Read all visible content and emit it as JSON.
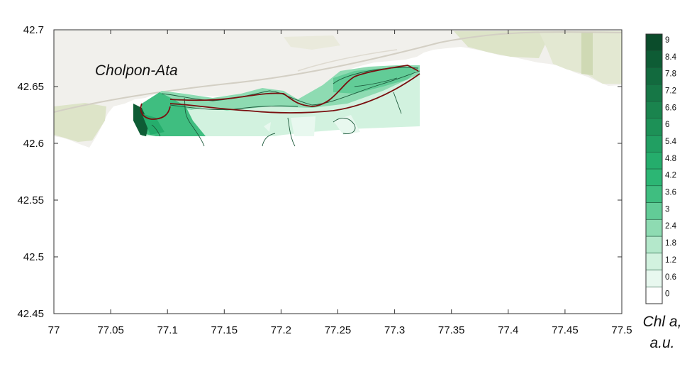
{
  "place_label": "Cholpon-Ata",
  "colorbar": {
    "title_line1": "Chl a,",
    "title_line2": "a.u.",
    "labels": [
      "9",
      "8.4",
      "7.8",
      "7.2",
      "6.6",
      "6",
      "5.4",
      "4.8",
      "4.2",
      "3.6",
      "3",
      "2.4",
      "1.8",
      "1.2",
      "0.6",
      "0"
    ],
    "colors": [
      "#ffffff",
      "#e8f8ef",
      "#d2f2df",
      "#b4e8cb",
      "#8edbb2",
      "#62cc97",
      "#3fbe80",
      "#2cb674",
      "#25ad6c",
      "#219f62",
      "#1d9157",
      "#1a844e",
      "#167746",
      "#126a3e",
      "#0e5c35",
      "#0b4c2b"
    ]
  },
  "chart_data": {
    "type": "heatmap",
    "title": "",
    "xlabel": "",
    "ylabel": "",
    "xlim": [
      77,
      77.5
    ],
    "ylim": [
      42.45,
      42.7
    ],
    "x_ticks": [
      "77",
      "77.05",
      "77.1",
      "77.15",
      "77.2",
      "77.25",
      "77.3",
      "77.35",
      "77.4",
      "77.45",
      "77.5"
    ],
    "y_ticks": [
      "42.7",
      "42.65",
      "42.6",
      "42.55",
      "42.5",
      "42.45"
    ],
    "value_range": [
      0,
      9
    ],
    "grid": false,
    "legend": "colorbar-right"
  },
  "colors": {
    "land": "#f1f0ec",
    "land_green": "#dde4c8",
    "road": "#d6d2c8",
    "transect_line": "#7a0f0f",
    "contour_line": "#1d5a3c"
  }
}
